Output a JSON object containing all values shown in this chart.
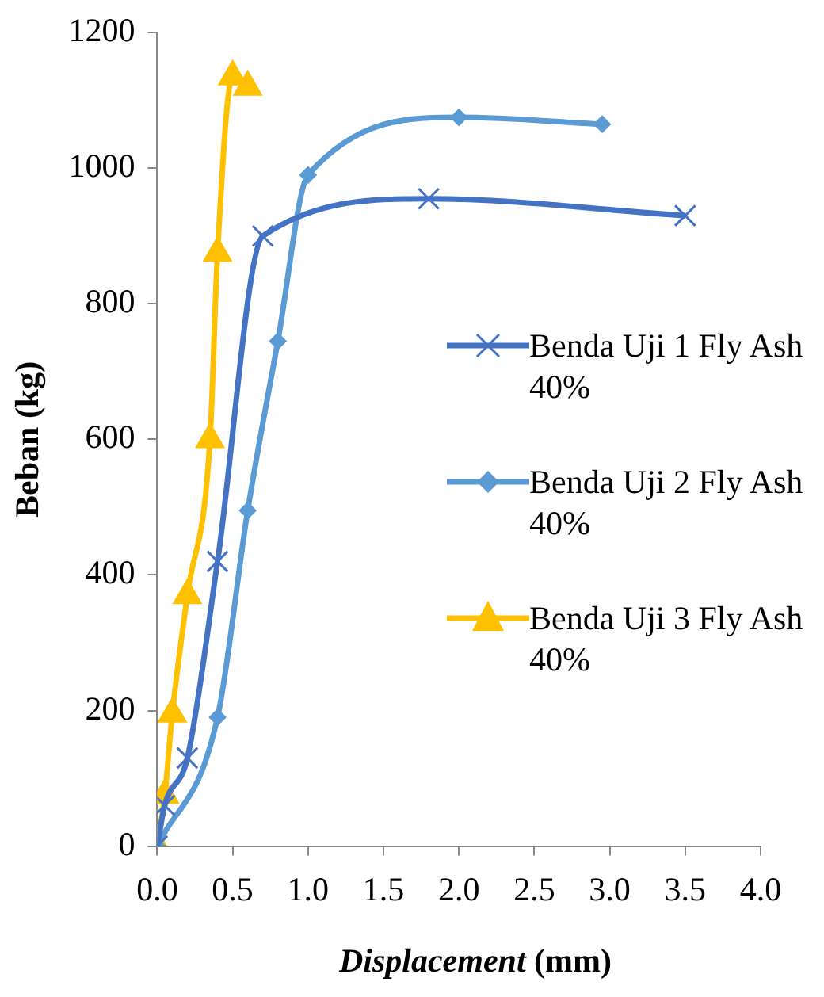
{
  "chart_data": {
    "type": "line",
    "xlabel": "Displacement (mm)",
    "ylabel": "Beban (kg)",
    "xlim": [
      0,
      4
    ],
    "xticks": [
      {
        "value": 0,
        "label": "0.0"
      },
      {
        "value": 0.5,
        "label": "0.5"
      },
      {
        "value": 1,
        "label": "1.0"
      },
      {
        "value": 1.5,
        "label": "1.5"
      },
      {
        "value": 2,
        "label": "2.0"
      },
      {
        "value": 2.5,
        "label": "2.5"
      },
      {
        "value": 3,
        "label": "3.0"
      },
      {
        "value": 3.5,
        "label": "3.5"
      },
      {
        "value": 4,
        "label": "4.0"
      }
    ],
    "ylim": [
      0,
      1200
    ],
    "yticks": [
      0,
      200,
      400,
      600,
      800,
      1000,
      1200
    ],
    "grid": false,
    "legend": "right",
    "series": [
      {
        "name": "Benda Uji 1 Fly Ash 40%",
        "color": "#4472c4",
        "marker": "cross",
        "x": [
          0,
          0.05,
          0.2,
          0.4,
          0.7,
          1.8,
          3.5
        ],
        "values": [
          0,
          60,
          130,
          420,
          900,
          955,
          930
        ]
      },
      {
        "name": "Benda Uji 2 Fly Ash 40%",
        "color": "#5b9bd5",
        "marker": "diamond",
        "x": [
          0,
          0.4,
          0.6,
          0.8,
          1.0,
          2.0,
          2.95
        ],
        "values": [
          0,
          190,
          495,
          745,
          990,
          1075,
          1065
        ]
      },
      {
        "name": "Benda Uji 3 Fly Ash 40%",
        "color": "#ffc000",
        "marker": "triangle",
        "x": [
          0,
          0.05,
          0.1,
          0.2,
          0.35,
          0.4,
          0.5,
          0.6
        ],
        "values": [
          0,
          75,
          195,
          370,
          600,
          875,
          1135,
          1120
        ]
      }
    ]
  }
}
